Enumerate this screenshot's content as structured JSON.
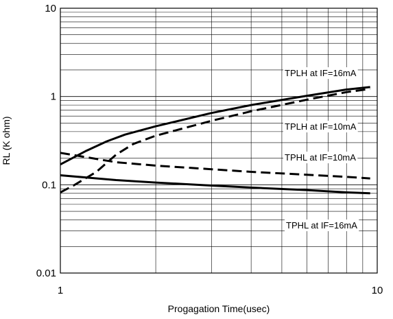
{
  "chart_data": {
    "type": "line",
    "title": "",
    "xlabel": "Progagation Time(usec)",
    "ylabel": "RL (K ohm)",
    "xscale": "log",
    "yscale": "log",
    "xlim": [
      1,
      10
    ],
    "ylim": [
      0.01,
      10
    ],
    "x_ticks": [
      {
        "value": 1,
        "label": "1"
      },
      {
        "value": 10,
        "label": "10"
      }
    ],
    "y_ticks": [
      {
        "value": 0.01,
        "label": "0.01"
      },
      {
        "value": 0.1,
        "label": "0.1"
      },
      {
        "value": 1,
        "label": "1"
      },
      {
        "value": 10,
        "label": "10"
      }
    ],
    "grid": true,
    "legend": "none",
    "series": [
      {
        "name": "TPLH at IF=16mA",
        "style": "solid",
        "x": [
          1.0,
          1.2,
          1.4,
          1.6,
          2.0,
          3.0,
          4.0,
          6.0,
          8.0,
          9.5
        ],
        "y": [
          0.17,
          0.24,
          0.31,
          0.37,
          0.46,
          0.65,
          0.8,
          1.02,
          1.2,
          1.28
        ]
      },
      {
        "name": "TPLH at IF=10mA",
        "style": "dashed",
        "x": [
          1.0,
          1.1,
          1.3,
          1.5,
          1.7,
          2.0,
          3.0,
          4.0,
          6.0,
          8.0,
          9.5
        ],
        "y": [
          0.082,
          0.098,
          0.14,
          0.22,
          0.29,
          0.36,
          0.53,
          0.68,
          0.92,
          1.12,
          1.22
        ]
      },
      {
        "name": "TPHL at IF=10mA",
        "style": "dashed",
        "x": [
          1.0,
          1.5,
          2.0,
          3.0,
          4.0,
          6.0,
          8.0,
          9.5
        ],
        "y": [
          0.23,
          0.18,
          0.165,
          0.15,
          0.14,
          0.13,
          0.123,
          0.118
        ]
      },
      {
        "name": "TPHL at IF=16mA",
        "style": "solid",
        "x": [
          1.0,
          1.5,
          2.0,
          3.0,
          4.0,
          6.0,
          8.0,
          9.5
        ],
        "y": [
          0.128,
          0.113,
          0.106,
          0.098,
          0.093,
          0.087,
          0.082,
          0.08
        ]
      }
    ],
    "annotations": [
      {
        "text": "TPLH at IF=16mA"
      },
      {
        "text": "TPLH at IF=10mA"
      },
      {
        "text": "TPHL at IF=10mA"
      },
      {
        "text": "TPHL at IF=16mA"
      }
    ]
  }
}
